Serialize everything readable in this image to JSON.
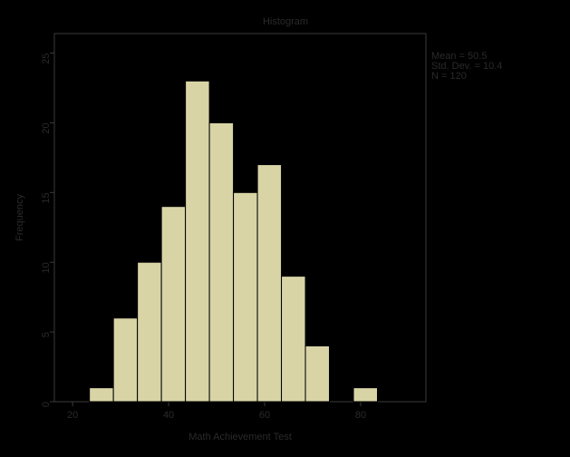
{
  "chart_data": {
    "type": "histogram",
    "title": "Histogram",
    "xlabel": "Math Achievement Test",
    "ylabel": "Frequency",
    "bins": [
      23.5,
      28.5,
      33.5,
      38.5,
      43.5,
      48.5,
      53.5,
      58.5,
      63.5,
      68.5,
      73.5,
      78.5,
      83.5
    ],
    "values": [
      1,
      6,
      10,
      14,
      23,
      20,
      15,
      17,
      9,
      4,
      0,
      1
    ],
    "color": "#d8d4a6",
    "xlim": [
      16.2,
      93.6
    ],
    "xticks": [
      20,
      40,
      60,
      80
    ],
    "ylim": [
      0,
      26.4
    ],
    "yticks": [
      0,
      5,
      10,
      15,
      20,
      25
    ],
    "annotations": [
      "Mean = 50.5",
      "Std. Dev. = 10.4",
      "N = 120"
    ]
  }
}
